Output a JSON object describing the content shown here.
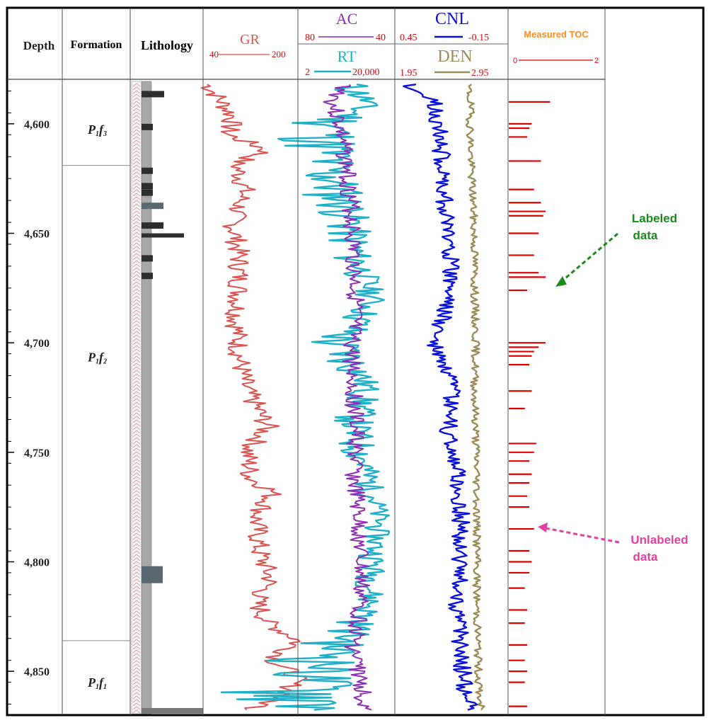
{
  "header": {
    "depth_label": "Depth",
    "formation_label": "Formation",
    "lithology_label": "Lithology",
    "gr": {
      "name": "GR",
      "min": "40",
      "max": "200"
    },
    "ac": {
      "name": "AC",
      "min": "80",
      "max": "40"
    },
    "rt": {
      "name": "RT",
      "min": "2",
      "max": "20,000"
    },
    "cnl": {
      "name": "CNL",
      "min": "0.45",
      "max": "-0.15"
    },
    "den": {
      "name": "DEN",
      "min": "1.95",
      "max": "2.95"
    },
    "toc": {
      "name": "Measured TOC",
      "min": "0",
      "max": "2"
    }
  },
  "depth_ticks": [
    "4,600",
    "4,650",
    "4,700",
    "4,750",
    "4,800",
    "4,850"
  ],
  "formations": [
    {
      "main": "P",
      "sub1": "1",
      "mid": "f",
      "sub2": "3"
    },
    {
      "main": "P",
      "sub1": "1",
      "mid": "f",
      "sub2": "2"
    },
    {
      "main": "P",
      "sub1": "1",
      "mid": "f",
      "sub2": "1"
    }
  ],
  "annotations": {
    "labeled": [
      "Labeled",
      "data"
    ],
    "unlabeled": [
      "Unlabeled",
      "data"
    ]
  },
  "colors": {
    "gr": "#d9534f",
    "ac": "#8b2fb3",
    "rt": "#1fb0c8",
    "cnl": "#0a12d8",
    "den": "#9b8c5a",
    "toc": "#e00000",
    "labeled_arrow": "#1a8a1a",
    "unlabeled_arrow": "#e040a0",
    "toc_title": "#ff8c1a",
    "axis_red": "#d01010"
  },
  "chart_data": {
    "type": "line",
    "y_axis": {
      "label": "Depth",
      "range": [
        4580,
        4870
      ],
      "ticks": [
        4600,
        4650,
        4700,
        4750,
        4800,
        4850
      ],
      "reversed": true
    },
    "formation_boundaries": [
      4619,
      4836
    ],
    "tracks": [
      {
        "name": "GR",
        "range": [
          40,
          200
        ],
        "samples": [
          [
            4582,
            45
          ],
          [
            4590,
            70
          ],
          [
            4597,
            90
          ],
          [
            4605,
            80
          ],
          [
            4612,
            150
          ],
          [
            4618,
            95
          ],
          [
            4630,
            110
          ],
          [
            4645,
            90
          ],
          [
            4660,
            100
          ],
          [
            4675,
            100
          ],
          [
            4690,
            95
          ],
          [
            4705,
            100
          ],
          [
            4720,
            110
          ],
          [
            4738,
            150
          ],
          [
            4750,
            115
          ],
          [
            4762,
            120
          ],
          [
            4768,
            160
          ],
          [
            4780,
            130
          ],
          [
            4795,
            135
          ],
          [
            4808,
            155
          ],
          [
            4818,
            130
          ],
          [
            4828,
            150
          ],
          [
            4836,
            205
          ],
          [
            4845,
            160
          ],
          [
            4852,
            200
          ],
          [
            4860,
            185
          ],
          [
            4868,
            120
          ]
        ]
      },
      {
        "name": "AC",
        "range": [
          80,
          40
        ],
        "samples": [
          [
            4582,
            60
          ],
          [
            4590,
            66
          ],
          [
            4600,
            63
          ],
          [
            4620,
            60
          ],
          [
            4640,
            58
          ],
          [
            4660,
            57
          ],
          [
            4680,
            56
          ],
          [
            4700,
            58
          ],
          [
            4720,
            57
          ],
          [
            4740,
            56
          ],
          [
            4760,
            57
          ],
          [
            4780,
            55
          ],
          [
            4800,
            54
          ],
          [
            4820,
            54
          ],
          [
            4840,
            57
          ],
          [
            4860,
            53
          ],
          [
            4868,
            52
          ]
        ]
      },
      {
        "name": "RT",
        "range": [
          2,
          20000
        ],
        "scale": "log",
        "samples": [
          [
            4582,
            40
          ],
          [
            4590,
            60
          ],
          [
            4600,
            30
          ],
          [
            4620,
            25
          ],
          [
            4640,
            40
          ],
          [
            4660,
            45
          ],
          [
            4680,
            70
          ],
          [
            4700,
            30
          ],
          [
            4720,
            60
          ],
          [
            4740,
            45
          ],
          [
            4760,
            60
          ],
          [
            4780,
            80
          ],
          [
            4800,
            70
          ],
          [
            4820,
            65
          ],
          [
            4840,
            30
          ],
          [
            4860,
            20
          ],
          [
            4868,
            25
          ]
        ]
      },
      {
        "name": "CNL",
        "range": [
          0.45,
          -0.15
        ],
        "samples": [
          [
            4582,
            0.38
          ],
          [
            4590,
            0.25
          ],
          [
            4600,
            0.22
          ],
          [
            4620,
            0.2
          ],
          [
            4640,
            0.18
          ],
          [
            4660,
            0.15
          ],
          [
            4680,
            0.16
          ],
          [
            4700,
            0.25
          ],
          [
            4720,
            0.15
          ],
          [
            4740,
            0.17
          ],
          [
            4760,
            0.12
          ],
          [
            4780,
            0.1
          ],
          [
            4800,
            0.1
          ],
          [
            4820,
            0.12
          ],
          [
            4840,
            0.1
          ],
          [
            4860,
            0.08
          ],
          [
            4868,
            0.05
          ]
        ]
      },
      {
        "name": "DEN",
        "range": [
          1.95,
          2.95
        ],
        "samples": [
          [
            4582,
            2.6
          ],
          [
            4590,
            2.62
          ],
          [
            4600,
            2.62
          ],
          [
            4620,
            2.63
          ],
          [
            4640,
            2.65
          ],
          [
            4660,
            2.66
          ],
          [
            4680,
            2.66
          ],
          [
            4700,
            2.67
          ],
          [
            4720,
            2.66
          ],
          [
            4740,
            2.67
          ],
          [
            4760,
            2.68
          ],
          [
            4780,
            2.68
          ],
          [
            4800,
            2.68
          ],
          [
            4820,
            2.68
          ],
          [
            4840,
            2.69
          ],
          [
            4860,
            2.7
          ],
          [
            4868,
            2.72
          ]
        ]
      },
      {
        "name": "Measured TOC",
        "range": [
          0,
          2
        ],
        "type": "bar",
        "samples": [
          [
            4590,
            0.9
          ],
          [
            4600,
            0.5
          ],
          [
            4602,
            0.45
          ],
          [
            4606,
            0.4
          ],
          [
            4617,
            0.7
          ],
          [
            4630,
            0.55
          ],
          [
            4636,
            0.7
          ],
          [
            4640,
            0.8
          ],
          [
            4642,
            0.75
          ],
          [
            4650,
            0.65
          ],
          [
            4660,
            0.55
          ],
          [
            4668,
            0.65
          ],
          [
            4670,
            0.8
          ],
          [
            4676,
            0.4
          ],
          [
            4700,
            0.8
          ],
          [
            4702,
            0.65
          ],
          [
            4704,
            0.55
          ],
          [
            4706,
            0.5
          ],
          [
            4710,
            0.45
          ],
          [
            4722,
            0.5
          ],
          [
            4730,
            0.35
          ],
          [
            4746,
            0.6
          ],
          [
            4750,
            0.55
          ],
          [
            4754,
            0.45
          ],
          [
            4760,
            0.5
          ],
          [
            4764,
            0.45
          ],
          [
            4770,
            0.4
          ],
          [
            4775,
            0.45
          ],
          [
            4785,
            0.55
          ],
          [
            4795,
            0.45
          ],
          [
            4800,
            0.5
          ],
          [
            4805,
            0.45
          ],
          [
            4812,
            0.35
          ],
          [
            4822,
            0.4
          ],
          [
            4828,
            0.35
          ],
          [
            4838,
            0.4
          ],
          [
            4845,
            0.35
          ],
          [
            4850,
            0.4
          ],
          [
            4855,
            0.35
          ],
          [
            4866,
            0.4
          ]
        ]
      }
    ]
  }
}
